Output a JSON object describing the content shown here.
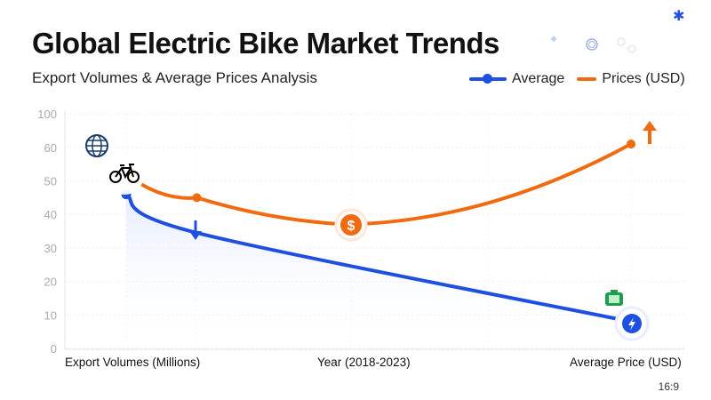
{
  "title": "Global Electric Bike Market Trends",
  "subtitle": "Export Volumes & Average Prices Analysis",
  "aspect_label": "16:9",
  "colors": {
    "blue": "#1f4fe0",
    "orange": "#f06a10",
    "grid": "#eeeeee",
    "tick": "#aaaaaa"
  },
  "chart_data": {
    "type": "line",
    "title": "Global Electric Bike Market Trends",
    "subtitle": "Export Volumes & Average Prices Analysis",
    "xlabels": [
      "Export Volumes (Millions)",
      "Year (2018-2023)",
      "Average Price (USD)"
    ],
    "y_ticks": [
      0,
      10,
      20,
      30,
      40,
      50,
      60,
      100
    ],
    "ylim": [
      0,
      100
    ],
    "grid": true,
    "legend": "top-right",
    "legend_entries": [
      "Average",
      "Prices (USD)"
    ],
    "series": [
      {
        "name": "Average",
        "color": "#1f4fe0",
        "x": [
          2018,
          2018.7,
          2023
        ],
        "y": [
          46,
          34.5,
          8
        ]
      },
      {
        "name": "Prices (USD)",
        "color": "#f06a10",
        "x": [
          2018,
          2018.7,
          2020.2,
          2023
        ],
        "y": [
          52,
          45,
          37,
          61
        ]
      }
    ],
    "icons": [
      "globe-icon",
      "bicycle-icon",
      "down-arrow-icon",
      "dollar-icon",
      "up-arrow-icon",
      "battery-icon",
      "lightning-icon"
    ]
  }
}
